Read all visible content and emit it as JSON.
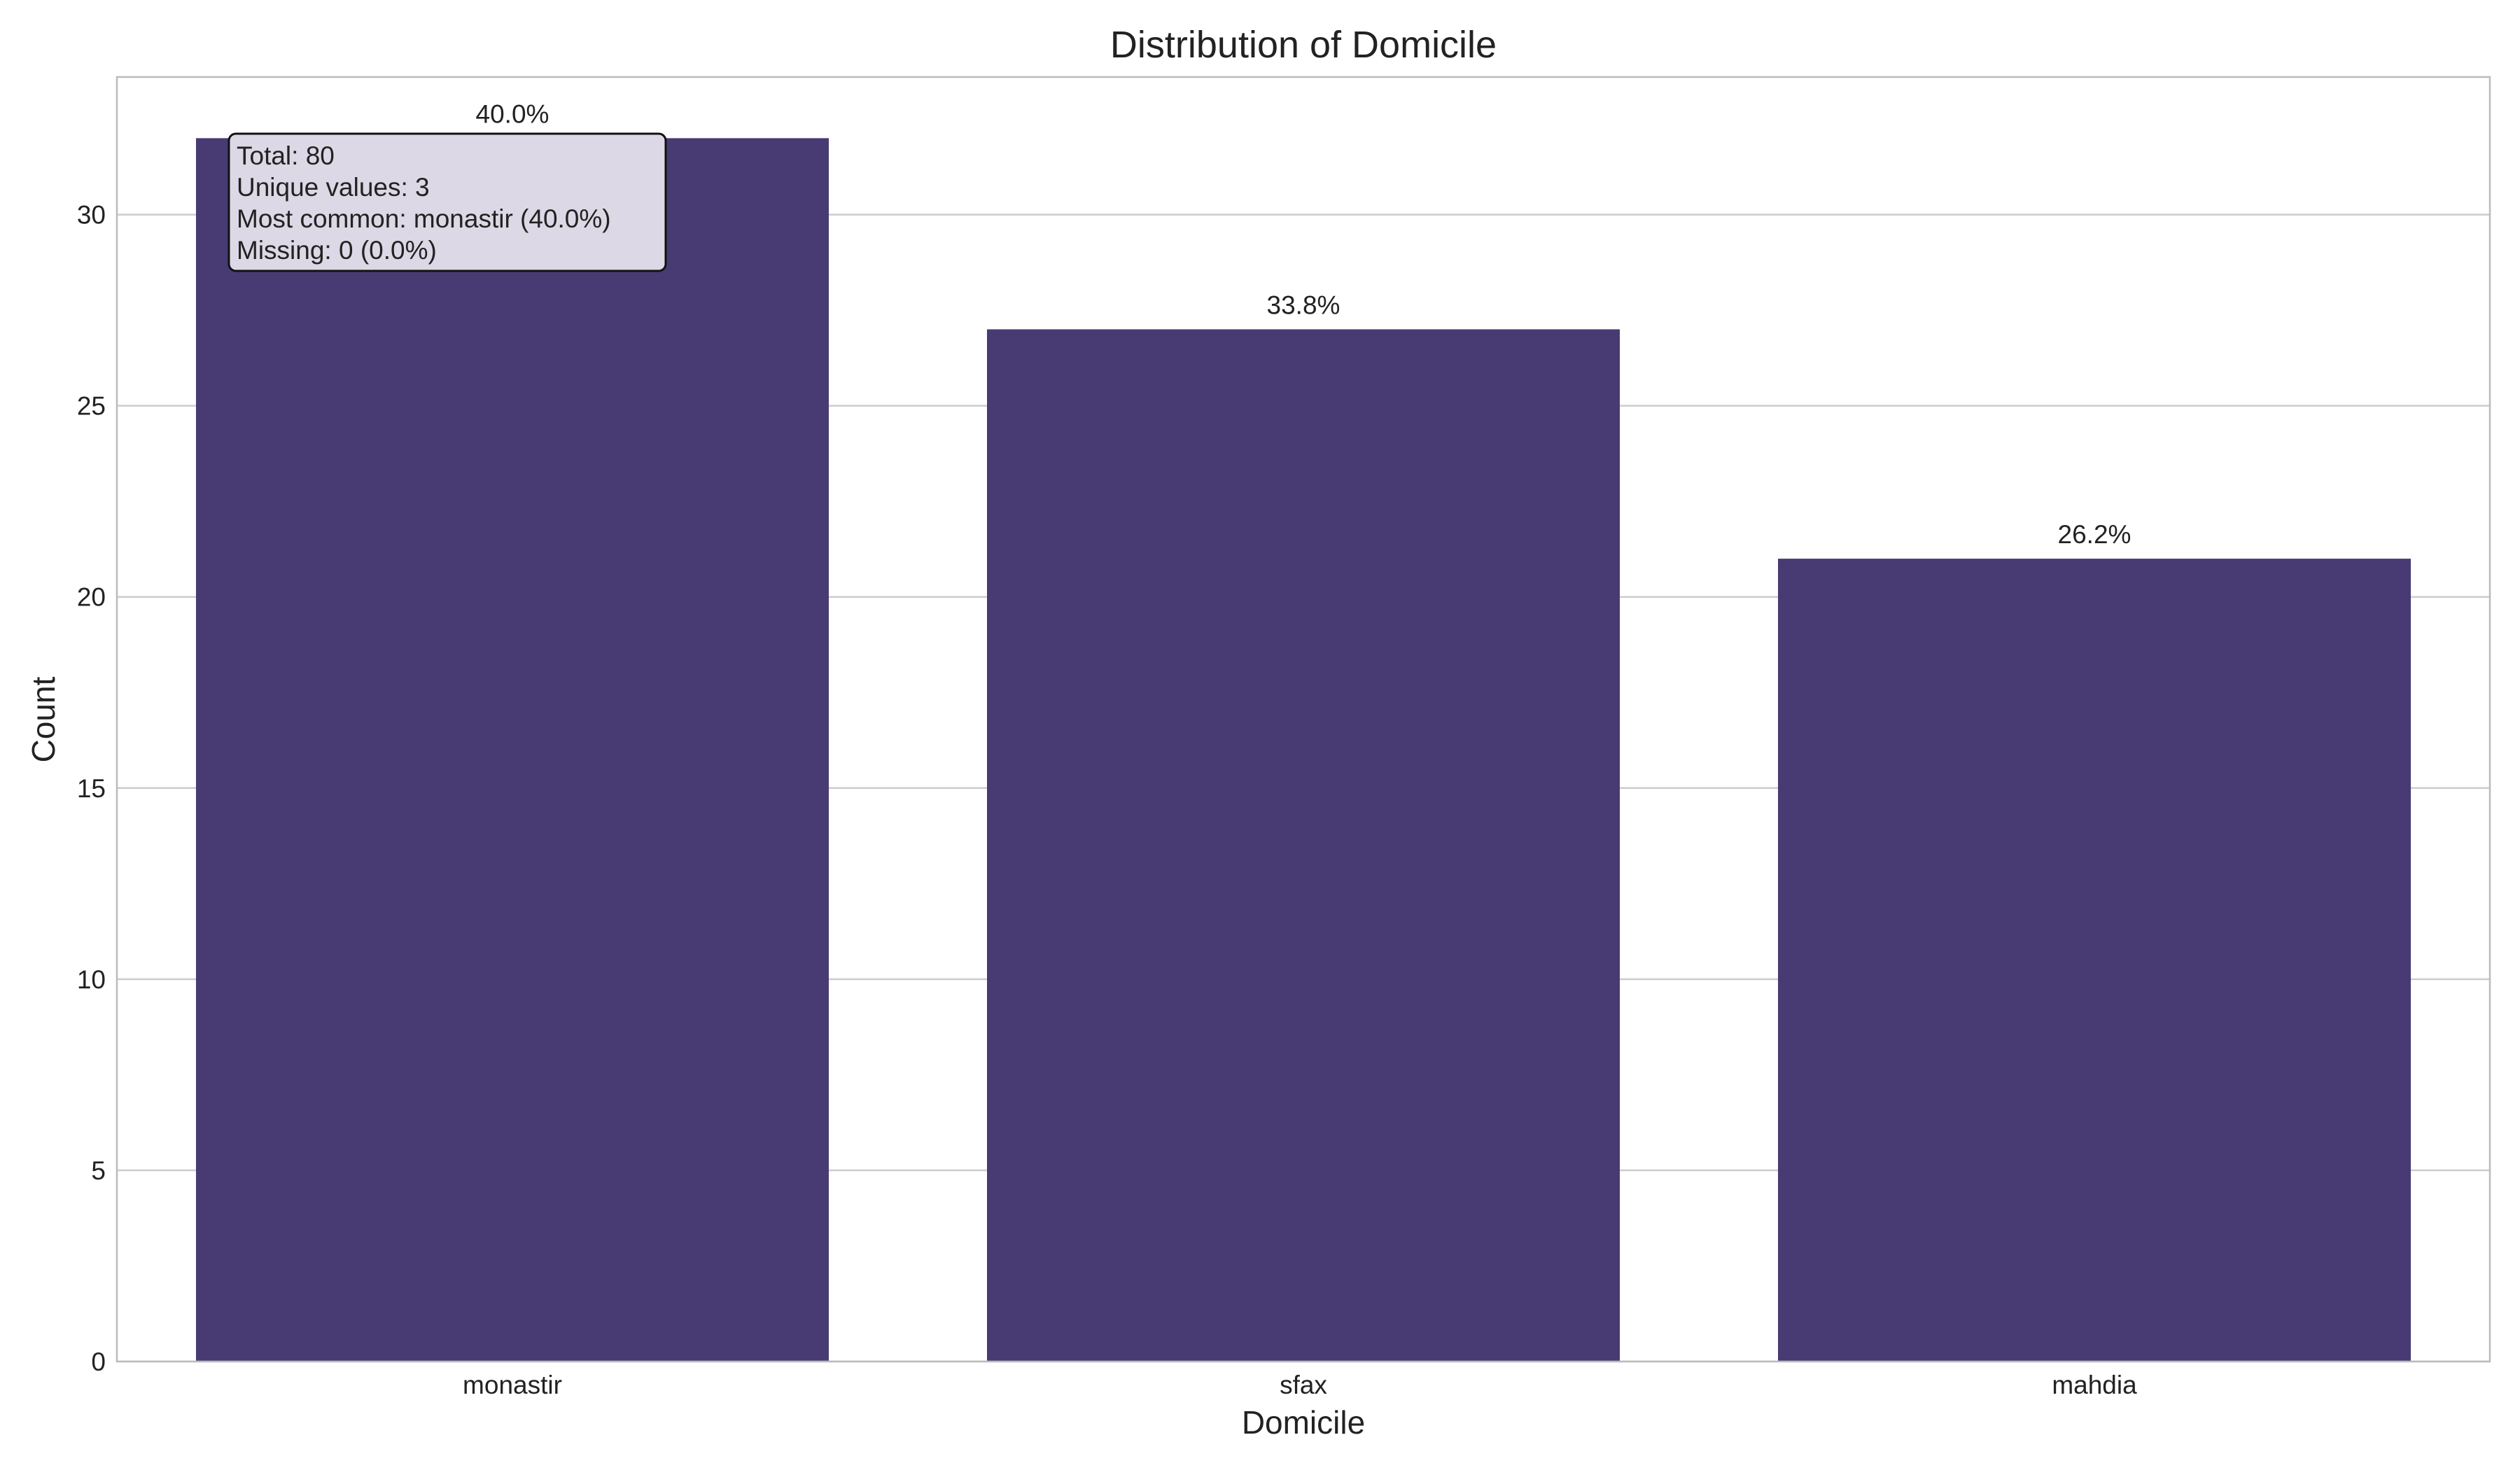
{
  "chart_data": {
    "type": "bar",
    "title": "Distribution of Domicile",
    "xlabel": "Domicile",
    "ylabel": "Count",
    "categories": [
      "monastir",
      "sfax",
      "mahdia"
    ],
    "values": [
      32,
      27,
      21
    ],
    "data_labels": [
      "40.0%",
      "33.8%",
      "26.2%"
    ],
    "ylim": [
      0,
      33.6
    ],
    "yticks": [
      0,
      5,
      10,
      15,
      20,
      25,
      30
    ],
    "grid": "horizontal",
    "bar_color": "#483b73",
    "annotation_lines": [
      "Total: 80",
      "Unique values: 3",
      "Most common: monastir (40.0%)",
      "Missing: 0 (0.0%)"
    ],
    "annotation_bg": "#dcd8e5"
  }
}
